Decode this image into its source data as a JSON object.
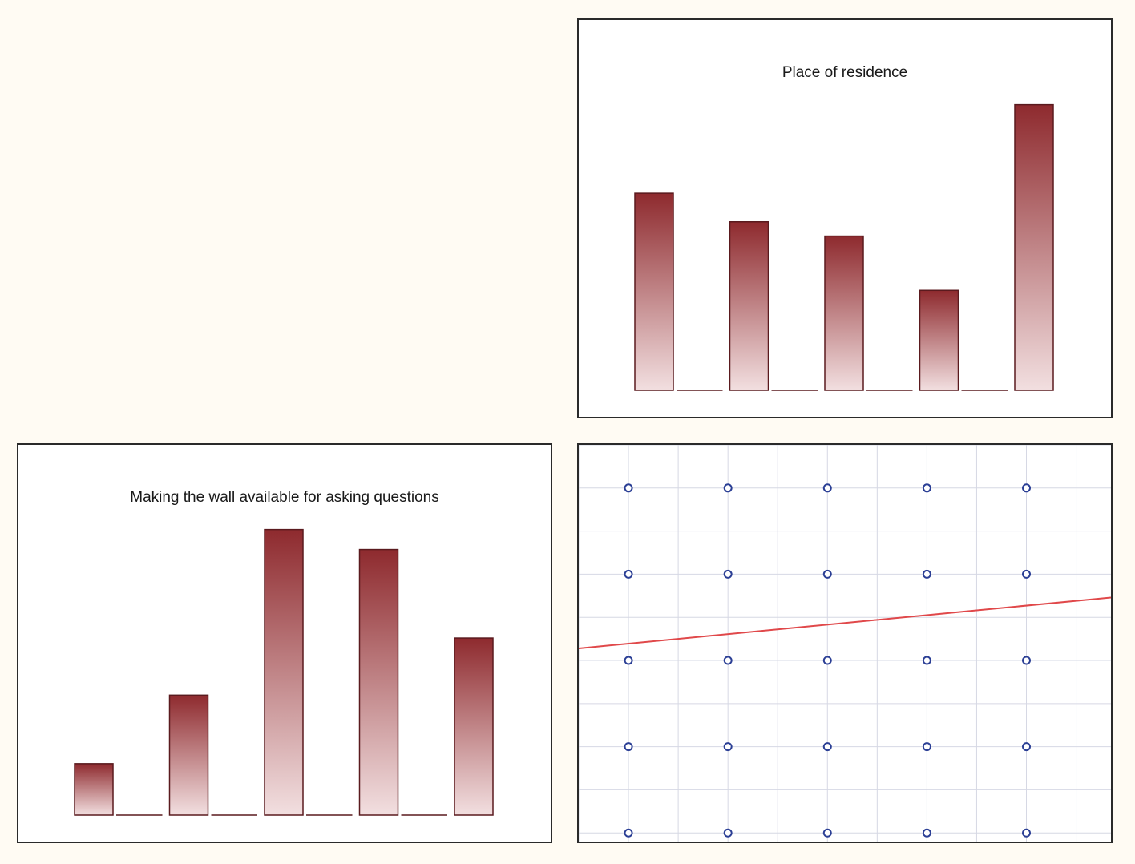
{
  "colors": {
    "bar_top": "#8e2a2e",
    "bar_bottom": "#f2dfe0",
    "bar_stroke": "#5a1a1e",
    "grid": "#d6d8e4",
    "marker": "#2b3f95",
    "trend": "#e0484a",
    "background": "#fffbf3"
  },
  "chart_data": [
    {
      "type": "bar",
      "title": "Place of residence",
      "categories": [
        "",
        "",
        "",
        "",
        ""
      ],
      "values": [
        69,
        59,
        54,
        35,
        100
      ],
      "ylim": [
        0,
        110
      ],
      "grid": false,
      "legend": "none"
    },
    {
      "type": "bar",
      "title": "Making the wall available for asking questions",
      "categories": [
        "",
        "",
        "",
        "",
        ""
      ],
      "values": [
        18,
        42,
        100,
        93,
        62
      ],
      "ylim": [
        0,
        110
      ],
      "grid": false,
      "legend": "none"
    },
    {
      "type": "scatter",
      "title": "",
      "x": [
        1,
        2,
        3,
        4,
        5,
        1,
        2,
        3,
        4,
        5,
        1,
        2,
        3,
        4,
        5,
        1,
        2,
        3,
        4,
        5,
        1,
        2,
        3,
        4,
        5
      ],
      "y": [
        5,
        5,
        5,
        5,
        5,
        4,
        4,
        4,
        4,
        4,
        3,
        3,
        3,
        3,
        3,
        2,
        2,
        2,
        2,
        2,
        1,
        1,
        1,
        1,
        1
      ],
      "xlim": [
        0.5,
        5.85
      ],
      "ylim": [
        0.9,
        5.5
      ],
      "trendline": {
        "x": [
          0.5,
          5.85
        ],
        "y": [
          3.14,
          3.73
        ]
      },
      "grid": true,
      "legend": "none"
    }
  ]
}
